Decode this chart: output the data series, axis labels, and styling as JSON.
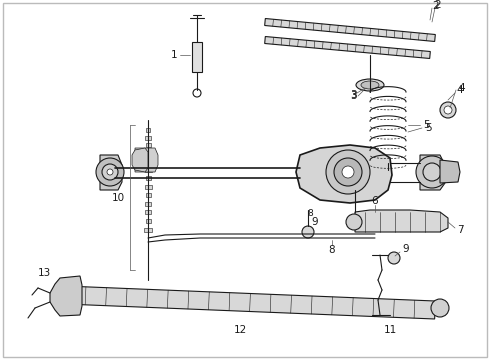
{
  "bg_color": "#ffffff",
  "line_color": "#1a1a1a",
  "fig_width": 4.9,
  "fig_height": 3.6,
  "dpi": 100,
  "label_fontsize": 7.5,
  "border_color": "#aaaaaa"
}
